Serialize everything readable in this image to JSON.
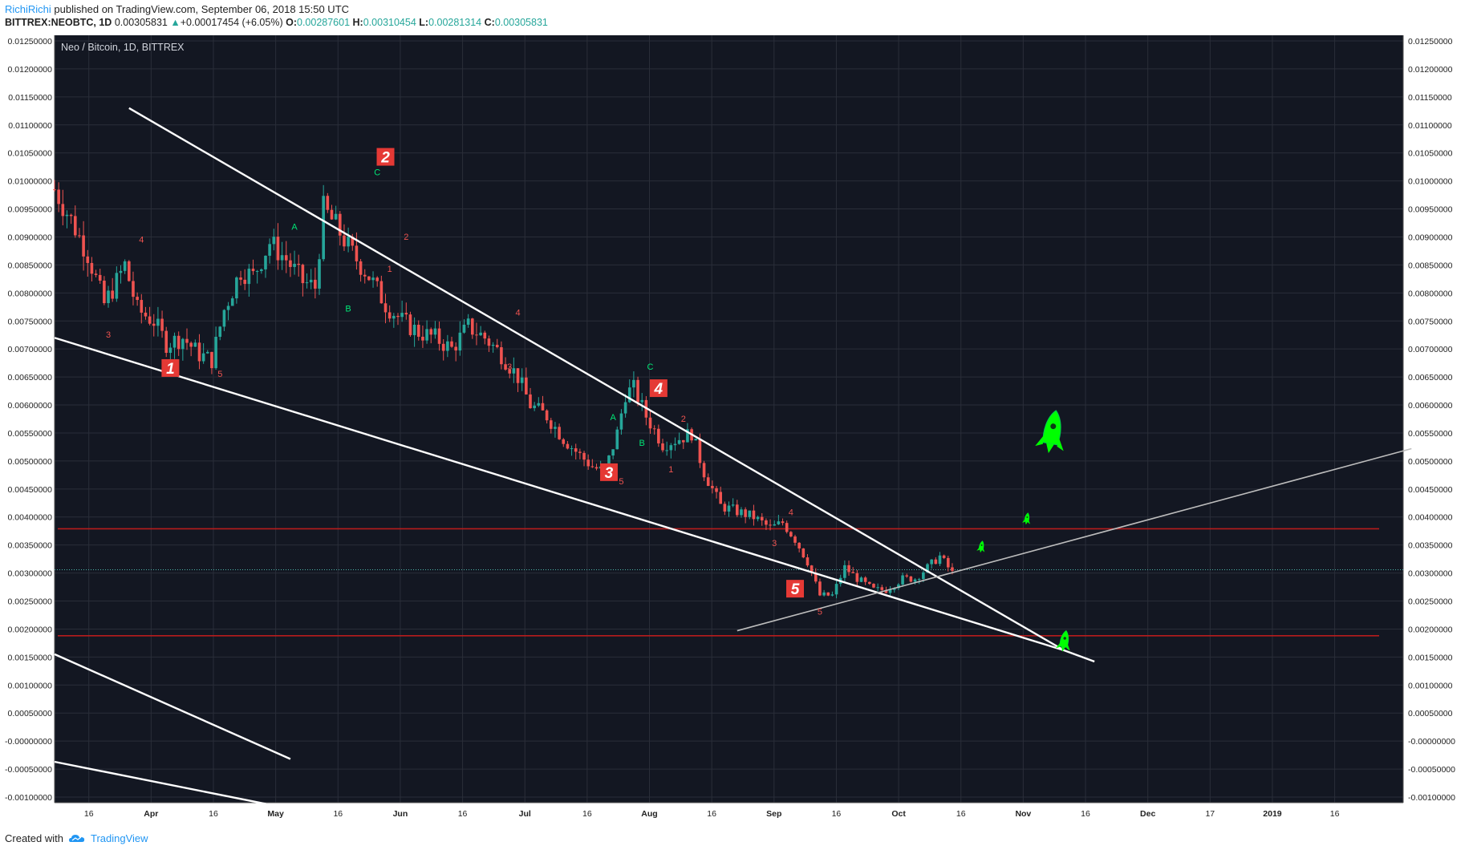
{
  "header": {
    "user": "RichiRichi",
    "published": "published on TradingView.com, September 06, 2018 15:50 UTC",
    "symbol": "BITTREX:NEOBTC, 1D",
    "last": "0.00305831",
    "change": "+0.00017454 (+6.05%)",
    "o_label": "O:",
    "o": "0.00287601",
    "h_label": "H:",
    "h": "0.00310454",
    "l_label": "L:",
    "l": "0.00281314",
    "c_label": "C:",
    "c": "0.00305831"
  },
  "footer": {
    "created": "Created with",
    "brand": "TradingView",
    "logo": "tradingview-cloud-icon"
  },
  "colors": {
    "bg": "#131722",
    "grid": "#2a2e39",
    "up": "#26a69a",
    "down": "#ef5350",
    "trend": "#ffffff",
    "support": "#b71c1c",
    "wave_green": "#00e676",
    "wave_red": "#ef5350",
    "box": "#e53935",
    "rocket": "#00ff00"
  },
  "chart_data": {
    "type": "candlestick",
    "title": "Neo / Bitcoin, 1D, BITTREX",
    "x_ticks": [
      "16",
      "Apr",
      "16",
      "May",
      "16",
      "Jun",
      "16",
      "Jul",
      "16",
      "Aug",
      "16",
      "Sep",
      "16",
      "Oct",
      "16",
      "Nov",
      "16",
      "Dec",
      "17",
      "2019",
      "16"
    ],
    "x_start": "2018-03-10",
    "x_end": "2019-01-30",
    "ylim": [
      -0.0011,
      0.0126
    ],
    "y_ticks": [
      "0.01250000",
      "0.01200000",
      "0.01150000",
      "0.01100000",
      "0.01050000",
      "0.01000000",
      "0.00950000",
      "0.00900000",
      "0.00850000",
      "0.00800000",
      "0.00750000",
      "0.00700000",
      "0.00650000",
      "0.00600000",
      "0.00550000",
      "0.00500000",
      "0.00450000",
      "0.00400000",
      "0.00350000",
      "0.00300000",
      "0.00250000",
      "0.00200000",
      "0.00150000",
      "0.00100000",
      "0.00050000",
      "-0.00000000",
      "-0.00050000",
      "-0.00100000"
    ],
    "close_path": [
      [
        "2018-03-10",
        0.00985
      ],
      [
        "2018-03-14",
        0.0093
      ],
      [
        "2018-03-18",
        0.0087
      ],
      [
        "2018-03-22",
        0.0078
      ],
      [
        "2018-03-25",
        0.0082
      ],
      [
        "2018-03-27",
        0.0085
      ],
      [
        "2018-03-30",
        0.0077
      ],
      [
        "2018-04-03",
        0.0075
      ],
      [
        "2018-04-06",
        0.0071
      ],
      [
        "2018-04-10",
        0.0072
      ],
      [
        "2018-04-14",
        0.0069
      ],
      [
        "2018-04-17",
        0.0068
      ],
      [
        "2018-04-20",
        0.0077
      ],
      [
        "2018-04-24",
        0.0084
      ],
      [
        "2018-04-27",
        0.0083
      ],
      [
        "2018-05-01",
        0.0089
      ],
      [
        "2018-05-05",
        0.0086
      ],
      [
        "2018-05-09",
        0.0082
      ],
      [
        "2018-05-12",
        0.0081
      ],
      [
        "2018-05-14",
        0.0095
      ],
      [
        "2018-05-17",
        0.0092
      ],
      [
        "2018-05-21",
        0.0087
      ],
      [
        "2018-05-25",
        0.0083
      ],
      [
        "2018-05-29",
        0.0078
      ],
      [
        "2018-06-02",
        0.0075
      ],
      [
        "2018-06-06",
        0.0073
      ],
      [
        "2018-06-10",
        0.0072
      ],
      [
        "2018-06-14",
        0.007
      ],
      [
        "2018-06-18",
        0.0074
      ],
      [
        "2018-06-22",
        0.0072
      ],
      [
        "2018-06-26",
        0.0069
      ],
      [
        "2018-06-30",
        0.0065
      ],
      [
        "2018-07-03",
        0.006
      ],
      [
        "2018-07-07",
        0.0058
      ],
      [
        "2018-07-11",
        0.0054
      ],
      [
        "2018-07-15",
        0.0051
      ],
      [
        "2018-07-18",
        0.0049
      ],
      [
        "2018-07-21",
        0.0048
      ],
      [
        "2018-07-24",
        0.0055
      ],
      [
        "2018-07-26",
        0.0062
      ],
      [
        "2018-07-28",
        0.0063
      ],
      [
        "2018-07-31",
        0.0058
      ],
      [
        "2018-08-04",
        0.0053
      ],
      [
        "2018-08-08",
        0.0054
      ],
      [
        "2018-08-11",
        0.0055
      ],
      [
        "2018-08-14",
        0.0048
      ],
      [
        "2018-08-18",
        0.0042
      ],
      [
        "2018-08-22",
        0.0041
      ],
      [
        "2018-08-26",
        0.004
      ],
      [
        "2018-08-30",
        0.0038
      ],
      [
        "2018-09-02",
        0.0039
      ],
      [
        "2018-09-05",
        0.0036
      ],
      [
        "2018-09-08",
        0.0032
      ],
      [
        "2018-09-11",
        0.0026
      ],
      [
        "2018-09-14",
        0.0026
      ],
      [
        "2018-09-17",
        0.0031
      ],
      [
        "2018-09-20",
        0.0029
      ],
      [
        "2018-09-24",
        0.0027
      ],
      [
        "2018-09-27",
        0.0027
      ],
      [
        "2018-10-01",
        0.0029
      ],
      [
        "2018-10-04",
        0.0029
      ],
      [
        "2018-10-07",
        0.0031
      ],
      [
        "2018-10-10",
        0.0033
      ],
      [
        "2018-10-13",
        0.003
      ]
    ],
    "trendlines": [
      {
        "from": [
          "2018-03-28",
          0.0113
        ],
        "to": [
          "2018-11-09",
          0.00162
        ]
      },
      {
        "from": [
          "2018-03-10",
          0.0072
        ],
        "to": [
          "2018-11-09",
          0.00162
        ]
      },
      {
        "from": [
          "2018-08-22",
          0.00197
        ],
        "to": [
          "2019-02-01",
          0.00522
        ]
      },
      {
        "from": [
          "2018-03-10",
          0.00155
        ],
        "to": [
          "2018-05-06",
          -0.00032
        ]
      },
      {
        "from": [
          "2018-03-10",
          -0.00037
        ],
        "to": [
          "2018-05-04",
          -0.00118
        ]
      }
    ],
    "support_lines": [
      0.00379,
      0.00188
    ],
    "current_price": 0.00305831,
    "wave_boxes": [
      {
        "label": "1",
        "date": "2018-04-07",
        "value": 0.00666
      },
      {
        "label": "2",
        "date": "2018-05-29",
        "value": 0.01043
      },
      {
        "label": "3",
        "date": "2018-07-22",
        "value": 0.0048
      },
      {
        "label": "4",
        "date": "2018-08-03",
        "value": 0.0063
      },
      {
        "label": "5",
        "date": "2018-09-05",
        "value": 0.00272
      }
    ],
    "wave_labels": [
      {
        "label": "4",
        "date": "2018-03-31",
        "value": 0.0089,
        "color": "red"
      },
      {
        "label": "3",
        "date": "2018-03-23",
        "value": 0.0072,
        "color": "red"
      },
      {
        "label": "5",
        "date": "2018-04-19",
        "value": 0.0065,
        "color": "red"
      },
      {
        "label": "A",
        "date": "2018-05-07",
        "value": 0.00913,
        "color": "green"
      },
      {
        "label": "B",
        "date": "2018-05-20",
        "value": 0.00767,
        "color": "green"
      },
      {
        "label": "C",
        "date": "2018-05-27",
        "value": 0.0101,
        "color": "green"
      },
      {
        "label": "2",
        "date": "2018-06-03",
        "value": 0.00895,
        "color": "red"
      },
      {
        "label": "1",
        "date": "2018-05-30",
        "value": 0.00838,
        "color": "red"
      },
      {
        "label": "4",
        "date": "2018-06-30",
        "value": 0.0076,
        "color": "red"
      },
      {
        "label": "3",
        "date": "2018-06-28",
        "value": 0.00663,
        "color": "red"
      },
      {
        "label": "A",
        "date": "2018-07-23",
        "value": 0.00573,
        "color": "green"
      },
      {
        "label": "B",
        "date": "2018-07-30",
        "value": 0.00527,
        "color": "green"
      },
      {
        "label": "C",
        "date": "2018-08-01",
        "value": 0.00663,
        "color": "green"
      },
      {
        "label": "2",
        "date": "2018-08-09",
        "value": 0.0057,
        "color": "red"
      },
      {
        "label": "1",
        "date": "2018-08-06",
        "value": 0.0048,
        "color": "red"
      },
      {
        "label": "5",
        "date": "2018-07-25",
        "value": 0.00458,
        "color": "red"
      },
      {
        "label": "4",
        "date": "2018-09-04",
        "value": 0.00403,
        "color": "red"
      },
      {
        "label": "3",
        "date": "2018-08-31",
        "value": 0.00348,
        "color": "red"
      },
      {
        "label": "5",
        "date": "2018-09-11",
        "value": 0.00226,
        "color": "red"
      }
    ],
    "rockets": [
      {
        "date": "2018-11-06",
        "value": 0.00545,
        "size": "large"
      },
      {
        "date": "2018-10-31",
        "value": 0.00395,
        "size": "small"
      },
      {
        "date": "2018-10-20",
        "value": 0.00345,
        "size": "small"
      },
      {
        "date": "2018-11-09",
        "value": 0.00175,
        "size": "medium"
      }
    ]
  }
}
